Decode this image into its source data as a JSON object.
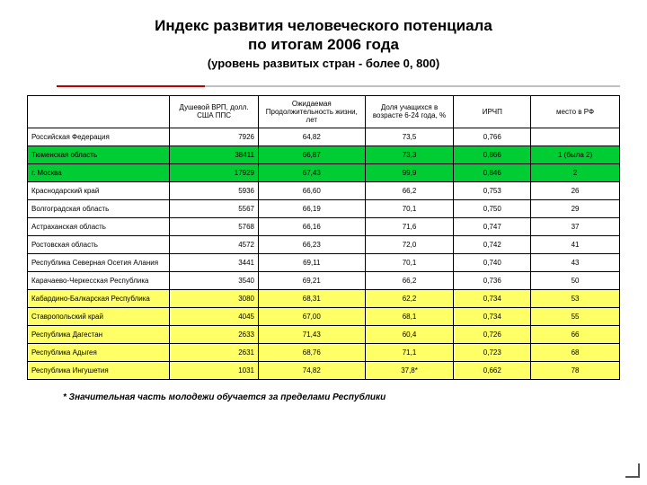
{
  "title_line1": "Индекс развития человеческого потенциала",
  "title_line2": "по итогам 2006 года",
  "subtitle": "(уровень развитых стран  - более 0, 800)",
  "divider": {
    "red_color": "#c00000",
    "gray_color": "#c0c0c0",
    "red_start_pct": 5,
    "red_end_pct": 30,
    "gray_end_pct": 100
  },
  "columns": [
    {
      "label": "",
      "width": "24%"
    },
    {
      "label": "Душевой ВРП, долл. США ППС",
      "width": "15%"
    },
    {
      "label": "Ожидаемая Продолжительность жизни, лет",
      "width": "18%"
    },
    {
      "label": "Доля учащихся в возрасте 6-24 года, %",
      "width": "15%"
    },
    {
      "label": "ИРЧП",
      "width": "13%"
    },
    {
      "label": "место в РФ",
      "width": "15%"
    }
  ],
  "row_colors": {
    "white": "#ffffff",
    "green": "#00cc33",
    "yellow": "#ffff66"
  },
  "rows": [
    {
      "bg": "white",
      "name": "Российская Федерация",
      "vrp": "7926",
      "life": "64,82",
      "share": "73,5",
      "hdi": "0,766",
      "rank": ""
    },
    {
      "bg": "green",
      "name": "Тюменская область",
      "vrp": "38411",
      "life": "66,87",
      "share": "73,3",
      "hdi": "0,866",
      "rank": "1 (была 2)"
    },
    {
      "bg": "green",
      "name": "г. Москва",
      "vrp": "17929",
      "life": "67,43",
      "share": "99,9",
      "hdi": "0,846",
      "rank": "2"
    },
    {
      "bg": "white",
      "name": "Краснодарский край",
      "vrp": "5936",
      "life": "66,60",
      "share": "66,2",
      "hdi": "0,753",
      "rank": "26"
    },
    {
      "bg": "white",
      "name": "Волгоградская область",
      "vrp": "5567",
      "life": "66,19",
      "share": "70,1",
      "hdi": "0,750",
      "rank": "29"
    },
    {
      "bg": "white",
      "name": "Астраханская область",
      "vrp": "5768",
      "life": "66,16",
      "share": "71,6",
      "hdi": "0,747",
      "rank": "37"
    },
    {
      "bg": "white",
      "name": "Ростовская область",
      "vrp": "4572",
      "life": "66,23",
      "share": "72,0",
      "hdi": "0,742",
      "rank": "41"
    },
    {
      "bg": "white",
      "name": "Республика Северная Осетия Алания",
      "vrp": "3441",
      "life": "69,11",
      "share": "70,1",
      "hdi": "0,740",
      "rank": "43"
    },
    {
      "bg": "white",
      "name": "Карачаево-Черкесская Республика",
      "vrp": "3540",
      "life": "69,21",
      "share": "66,2",
      "hdi": "0,736",
      "rank": "50"
    },
    {
      "bg": "yellow",
      "name": "Кабардино-Балкарская Республика",
      "vrp": "3080",
      "life": "68,31",
      "share": "62,2",
      "hdi": "0,734",
      "rank": "53"
    },
    {
      "bg": "yellow",
      "name": "Ставропольский край",
      "vrp": "4045",
      "life": "67,00",
      "share": "68,1",
      "hdi": "0,734",
      "rank": "55"
    },
    {
      "bg": "yellow",
      "name": "Республика Дагестан",
      "vrp": "2633",
      "life": "71,43",
      "share": "60,4",
      "hdi": "0,726",
      "rank": "66"
    },
    {
      "bg": "yellow",
      "name": "Республика Адыгея",
      "vrp": "2631",
      "life": "68,76",
      "share": "71,1",
      "hdi": "0,723",
      "rank": "68"
    },
    {
      "bg": "yellow",
      "name": "Республика Ингушетия",
      "vrp": "1031",
      "life": "74,82",
      "share": "37,8*",
      "hdi": "0,662",
      "rank": "78"
    }
  ],
  "footnote": "* Значительная часть молодежи обучается за пределами Республики"
}
